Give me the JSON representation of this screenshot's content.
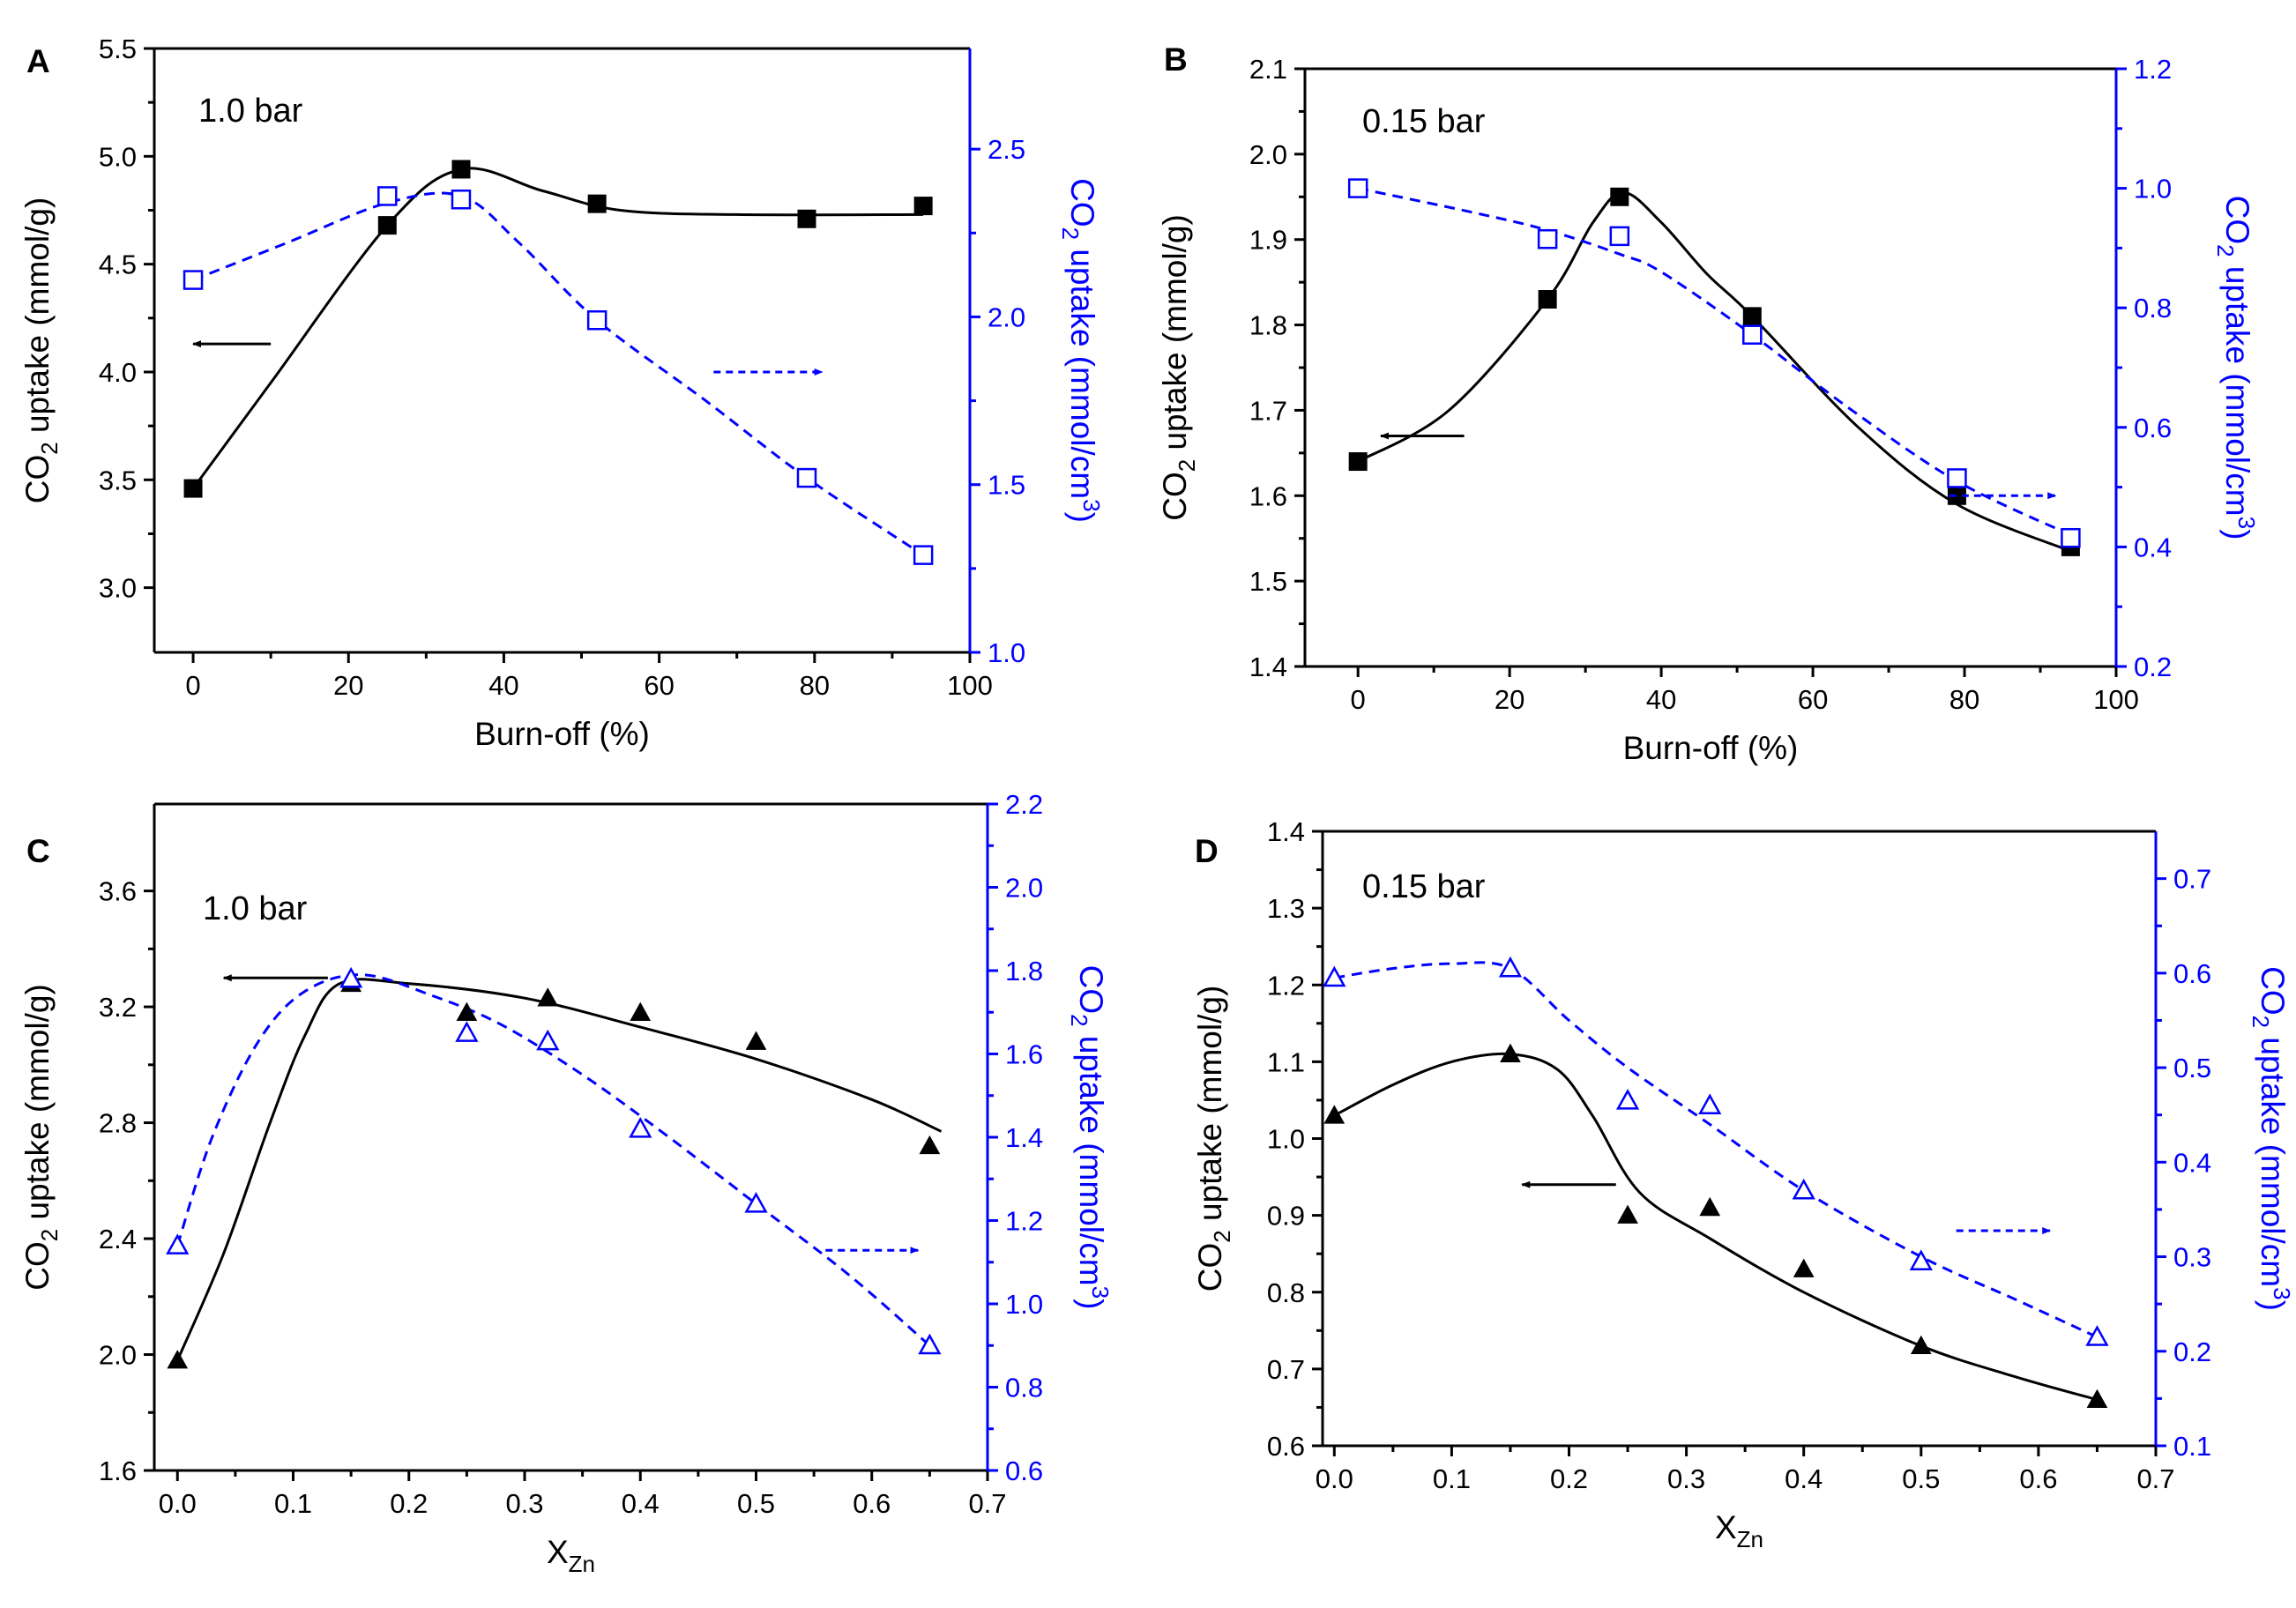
{
  "chart_data": [
    {
      "type": "line",
      "panel_label": "A",
      "annotation": "1.0 bar",
      "xlabel": "Burn-off (%)",
      "ylabel_left": {
        "pre": "CO",
        "sub": "2",
        "post": " uptake (mmol/g)"
      },
      "ylabel_right": {
        "pre": "CO",
        "sub": "2",
        "mid": " uptake (mmol/cm",
        "sup": "3",
        "post": ")"
      },
      "xlim": [
        -5,
        100
      ],
      "ylim_left": [
        2.7,
        5.5
      ],
      "ylim_right": [
        1.0,
        2.8
      ],
      "xticks": [
        0,
        20,
        40,
        60,
        80,
        100
      ],
      "yticks_left": [
        3.0,
        3.5,
        4.0,
        4.5,
        5.0,
        5.5
      ],
      "yticks_right": [
        1.0,
        1.5,
        2.0,
        2.5
      ],
      "ytick_decimals": 1,
      "yticks_right_decimals": 1,
      "marker": "square",
      "series": [
        {
          "axis": "left",
          "x": [
            0,
            25,
            34.5,
            52,
            79,
            94
          ],
          "values": [
            3.46,
            4.68,
            4.94,
            4.78,
            4.71,
            4.77
          ],
          "color": "#000000",
          "style": "solid"
        },
        {
          "axis": "right",
          "x": [
            0,
            25,
            34.5,
            52,
            79,
            94
          ],
          "values": [
            2.11,
            2.36,
            2.35,
            1.99,
            1.52,
            1.29
          ],
          "color": "#0000ff",
          "style": "dashed"
        }
      ],
      "curves": {
        "left": [
          [
            0,
            3.46
          ],
          [
            10,
            3.95
          ],
          [
            25,
            4.68
          ],
          [
            34.5,
            4.94
          ],
          [
            45,
            4.84
          ],
          [
            55,
            4.75
          ],
          [
            70,
            4.73
          ],
          [
            94,
            4.73
          ]
        ],
        "right": [
          [
            0,
            2.11
          ],
          [
            12,
            2.22
          ],
          [
            25,
            2.34
          ],
          [
            34.5,
            2.36
          ],
          [
            42,
            2.22
          ],
          [
            52,
            1.99
          ],
          [
            66,
            1.75
          ],
          [
            79,
            1.52
          ],
          [
            94,
            1.29
          ]
        ]
      },
      "arrows": [
        {
          "side": "left",
          "x0": 10,
          "x1": 0,
          "y": 4.13
        },
        {
          "side": "right",
          "x0": 67,
          "x1": 81,
          "y": 4.0
        }
      ]
    },
    {
      "type": "line",
      "panel_label": "B",
      "annotation": "0.15 bar",
      "xlabel": "Burn-off (%)",
      "ylabel_left": {
        "pre": "CO",
        "sub": "2",
        "post": " uptake (mmol/g)"
      },
      "ylabel_right": {
        "pre": "CO",
        "sub": "2",
        "mid": " uptake (mmol/cm",
        "sup": "3",
        "post": ")"
      },
      "xlim": [
        -7,
        100
      ],
      "ylim_left": [
        1.4,
        2.1
      ],
      "ylim_right": [
        0.2,
        1.2
      ],
      "xticks": [
        0,
        20,
        40,
        60,
        80,
        100
      ],
      "yticks_left": [
        1.4,
        1.5,
        1.6,
        1.7,
        1.8,
        1.9,
        2.0,
        2.1
      ],
      "yticks_right": [
        0.2,
        0.4,
        0.6,
        0.8,
        1.0,
        1.2
      ],
      "ytick_decimals": 1,
      "yticks_right_decimals": 1,
      "marker": "square",
      "series": [
        {
          "axis": "left",
          "x": [
            0,
            25,
            34.5,
            52,
            79,
            94
          ],
          "values": [
            1.64,
            1.83,
            1.95,
            1.81,
            1.6,
            1.54
          ],
          "color": "#000000",
          "style": "solid"
        },
        {
          "axis": "right",
          "x": [
            0,
            25,
            34.5,
            52,
            79,
            94
          ],
          "values": [
            1.0,
            0.915,
            0.92,
            0.755,
            0.515,
            0.415
          ],
          "color": "#0000ff",
          "style": "dashed"
        }
      ],
      "curves": {
        "left": [
          [
            0,
            1.64
          ],
          [
            12,
            1.7
          ],
          [
            25,
            1.83
          ],
          [
            31,
            1.92
          ],
          [
            35,
            1.955
          ],
          [
            40,
            1.92
          ],
          [
            46,
            1.86
          ],
          [
            52,
            1.81
          ],
          [
            66,
            1.68
          ],
          [
            79,
            1.59
          ],
          [
            94,
            1.535
          ]
        ],
        "right": [
          [
            0,
            1.0
          ],
          [
            15,
            0.96
          ],
          [
            25,
            0.93
          ],
          [
            34.5,
            0.89
          ],
          [
            40,
            0.86
          ],
          [
            52,
            0.755
          ],
          [
            65,
            0.63
          ],
          [
            79,
            0.51
          ],
          [
            94,
            0.42
          ]
        ]
      },
      "arrows": [
        {
          "side": "left",
          "x0": 14,
          "x1": 3,
          "y": 1.67
        },
        {
          "side": "right",
          "x0": 78,
          "x1": 92,
          "y": 1.6
        }
      ]
    },
    {
      "type": "line",
      "panel_label": "C",
      "annotation": "1.0 bar",
      "xlabel": {
        "pre": "X",
        "sub": "Zn"
      },
      "ylabel_left": {
        "pre": "CO",
        "sub": "2",
        "post": " uptake (mmol/g)"
      },
      "ylabel_right": {
        "pre": "CO",
        "sub": "2",
        "mid": " uptake (mmol/cm",
        "sup": "3",
        "post": ")"
      },
      "xlim": [
        -0.02,
        0.7
      ],
      "ylim_left": [
        1.6,
        3.9
      ],
      "ylim_right": [
        0.6,
        2.2
      ],
      "xticks": [
        0.0,
        0.1,
        0.2,
        0.3,
        0.4,
        0.5,
        0.6,
        0.7
      ],
      "yticks_left": [
        1.6,
        2.0,
        2.4,
        2.8,
        3.2,
        3.6
      ],
      "yticks_right": [
        0.6,
        0.8,
        1.0,
        1.2,
        1.4,
        1.6,
        1.8,
        2.0,
        2.2
      ],
      "ytick_decimals": 1,
      "yticks_right_decimals": 1,
      "marker": "triangle",
      "series": [
        {
          "axis": "left",
          "x": [
            0.0,
            0.15,
            0.25,
            0.32,
            0.4,
            0.5,
            0.65
          ],
          "values": [
            1.98,
            3.28,
            3.18,
            3.23,
            3.18,
            3.08,
            2.72
          ],
          "color": "#000000",
          "style": "solid"
        },
        {
          "axis": "right",
          "x": [
            0.0,
            0.15,
            0.25,
            0.32,
            0.4,
            0.5,
            0.65
          ],
          "values": [
            1.14,
            1.78,
            1.65,
            1.63,
            1.42,
            1.24,
            0.9
          ],
          "color": "#0000ff",
          "style": "dashed"
        }
      ],
      "curves": {
        "left": [
          [
            0.0,
            1.98
          ],
          [
            0.04,
            2.35
          ],
          [
            0.08,
            2.8
          ],
          [
            0.11,
            3.1
          ],
          [
            0.14,
            3.28
          ],
          [
            0.2,
            3.28
          ],
          [
            0.3,
            3.23
          ],
          [
            0.4,
            3.13
          ],
          [
            0.5,
            3.02
          ],
          [
            0.6,
            2.88
          ],
          [
            0.66,
            2.77
          ]
        ],
        "right": [
          [
            0.0,
            1.14
          ],
          [
            0.03,
            1.4
          ],
          [
            0.07,
            1.63
          ],
          [
            0.11,
            1.75
          ],
          [
            0.16,
            1.79
          ],
          [
            0.22,
            1.74
          ],
          [
            0.28,
            1.67
          ],
          [
            0.35,
            1.55
          ],
          [
            0.42,
            1.41
          ],
          [
            0.5,
            1.24
          ],
          [
            0.58,
            1.07
          ],
          [
            0.65,
            0.9
          ]
        ]
      },
      "arrows": [
        {
          "side": "left",
          "x0": 0.13,
          "x1": 0.04,
          "y": 3.3
        },
        {
          "side": "right",
          "x0": 0.56,
          "x1": 0.64,
          "y": 2.36
        }
      ]
    },
    {
      "type": "line",
      "panel_label": "D",
      "annotation": "0.15 bar",
      "xlabel": {
        "pre": "X",
        "sub": "Zn"
      },
      "ylabel_left": {
        "pre": "CO",
        "sub": "2",
        "post": " uptake (mmol/g)"
      },
      "ylabel_right": {
        "pre": "CO",
        "sub": "2",
        "mid": " uptake (mmol/cm",
        "sup": "3",
        "post": ")"
      },
      "xlim": [
        -0.01,
        0.7
      ],
      "ylim_left": [
        0.6,
        1.4
      ],
      "ylim_right": [
        0.1,
        0.75
      ],
      "xticks": [
        0.0,
        0.1,
        0.2,
        0.3,
        0.4,
        0.5,
        0.6,
        0.7
      ],
      "yticks_left": [
        0.6,
        0.7,
        0.8,
        0.9,
        1.0,
        1.1,
        1.2,
        1.3,
        1.4
      ],
      "yticks_right": [
        0.1,
        0.2,
        0.3,
        0.4,
        0.5,
        0.6,
        0.7
      ],
      "ytick_decimals": 1,
      "yticks_right_decimals": 1,
      "marker": "triangle",
      "series": [
        {
          "axis": "left",
          "x": [
            0.0,
            0.15,
            0.25,
            0.32,
            0.4,
            0.5,
            0.65
          ],
          "values": [
            1.03,
            1.11,
            0.9,
            0.91,
            0.83,
            0.73,
            0.66
          ],
          "color": "#000000",
          "style": "solid"
        },
        {
          "axis": "right",
          "x": [
            0.0,
            0.15,
            0.25,
            0.32,
            0.4,
            0.5,
            0.65
          ],
          "values": [
            0.595,
            0.605,
            0.465,
            0.46,
            0.37,
            0.295,
            0.215
          ],
          "color": "#0000ff",
          "style": "dashed"
        }
      ],
      "curves": {
        "left": [
          [
            0.0,
            1.03
          ],
          [
            0.05,
            1.07
          ],
          [
            0.1,
            1.1
          ],
          [
            0.15,
            1.11
          ],
          [
            0.19,
            1.09
          ],
          [
            0.22,
            1.03
          ],
          [
            0.26,
            0.93
          ],
          [
            0.32,
            0.87
          ],
          [
            0.4,
            0.8
          ],
          [
            0.5,
            0.73
          ],
          [
            0.58,
            0.69
          ],
          [
            0.65,
            0.66
          ]
        ],
        "right": [
          [
            0.0,
            0.595
          ],
          [
            0.05,
            0.605
          ],
          [
            0.1,
            0.61
          ],
          [
            0.15,
            0.605
          ],
          [
            0.2,
            0.55
          ],
          [
            0.25,
            0.5
          ],
          [
            0.32,
            0.44
          ],
          [
            0.4,
            0.37
          ],
          [
            0.5,
            0.3
          ],
          [
            0.58,
            0.255
          ],
          [
            0.65,
            0.215
          ]
        ]
      },
      "arrows": [
        {
          "side": "left",
          "x0": 0.24,
          "x1": 0.16,
          "y": 0.94
        },
        {
          "side": "right",
          "x0": 0.53,
          "x1": 0.61,
          "y": 0.88
        }
      ]
    }
  ]
}
